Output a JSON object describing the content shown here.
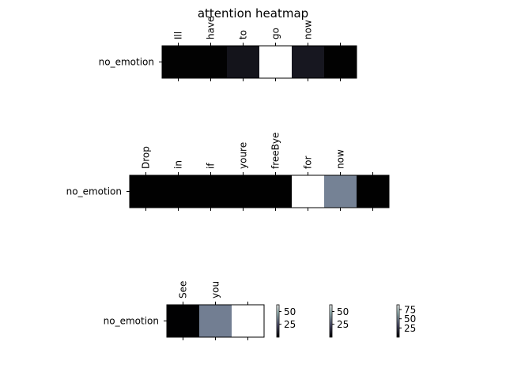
{
  "chart_data": {
    "type": "heatmap",
    "title": "attention heatmap",
    "colormap": "bone",
    "panels": [
      {
        "row_label": "no_emotion",
        "tokens": [
          "Ill",
          "have",
          "to",
          "go",
          "now",
          ""
        ],
        "values": [
          0.5,
          0.5,
          6,
          68,
          7,
          0.5
        ],
        "vmin": 0,
        "vmax": 68
      },
      {
        "row_label": "no_emotion",
        "tokens": [
          "Drop",
          "in",
          "if",
          "youre",
          "freeBye",
          "for",
          "now",
          ""
        ],
        "values": [
          0.3,
          0.3,
          0.3,
          0.3,
          0.3,
          63,
          33,
          0.3
        ],
        "vmin": 0,
        "vmax": 63
      },
      {
        "row_label": "no_emotion",
        "tokens": [
          "See",
          "you",
          ""
        ],
        "values": [
          0.5,
          45,
          88
        ],
        "vmin": 0,
        "vmax": 88
      }
    ],
    "colorbars": [
      {
        "ticks": [
          25,
          50
        ]
      },
      {
        "ticks": [
          25,
          50
        ]
      },
      {
        "ticks": [
          25,
          50,
          75
        ]
      }
    ]
  }
}
